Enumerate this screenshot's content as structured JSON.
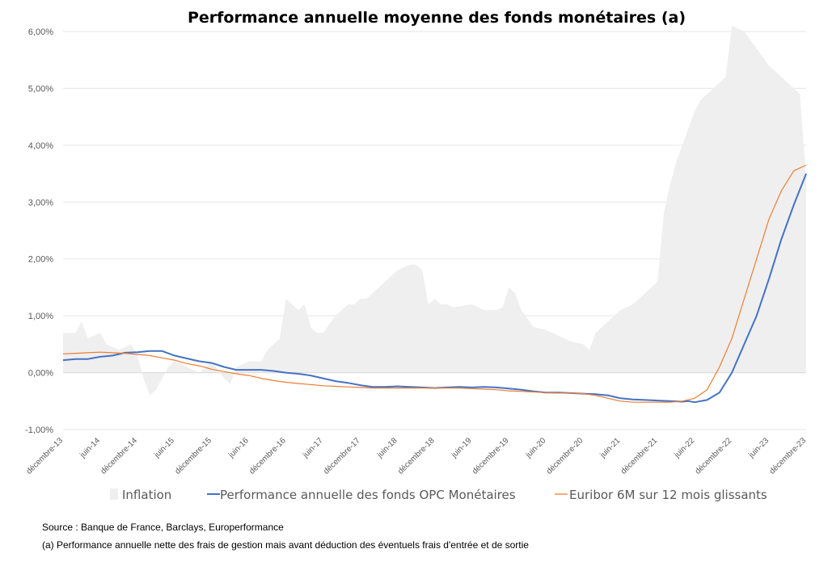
{
  "chart_data": {
    "type": "area",
    "title": "Performance annuelle moyenne des fonds monétaires (a)",
    "xlabel": "",
    "ylabel": "",
    "ylim": [
      -1.0,
      6.0
    ],
    "yticks": [
      "-1,00%",
      "0,00%",
      "1,00%",
      "2,00%",
      "3,00%",
      "4,00%",
      "5,00%",
      "6,00%"
    ],
    "ytick_values": [
      -1,
      0,
      1,
      2,
      3,
      4,
      5,
      6
    ],
    "x_labels": [
      "décembre-13",
      "juin-14",
      "décembre-14",
      "juin-15",
      "décembre-15",
      "juin-16",
      "décembre-16",
      "juin-17",
      "décembre-17",
      "juin-18",
      "décembre-18",
      "juin-19",
      "décembre-19",
      "juin-20",
      "décembre-20",
      "juin-21",
      "décembre-21",
      "juin-22",
      "décembre-22",
      "juin-23",
      "décembre-23"
    ],
    "x_label_months": [
      0,
      6,
      12,
      18,
      24,
      30,
      36,
      42,
      48,
      54,
      60,
      66,
      72,
      78,
      84,
      90,
      96,
      102,
      108,
      114,
      120
    ],
    "grid": "horizontal",
    "legend_position": "bottom",
    "series": [
      {
        "name": "Inflation",
        "style": "area",
        "color": "#efefef",
        "points": [
          [
            0,
            0.7
          ],
          [
            2,
            0.7
          ],
          [
            3,
            0.9
          ],
          [
            4,
            0.6
          ],
          [
            6,
            0.7
          ],
          [
            7,
            0.5
          ],
          [
            9,
            0.4
          ],
          [
            11,
            0.5
          ],
          [
            12,
            0.3
          ],
          [
            13,
            -0.1
          ],
          [
            14,
            -0.4
          ],
          [
            15,
            -0.3
          ],
          [
            16,
            -0.1
          ],
          [
            17,
            0.1
          ],
          [
            18,
            0.2
          ],
          [
            20,
            0.1
          ],
          [
            22,
            0.0
          ],
          [
            24,
            0.2
          ],
          [
            26,
            -0.1
          ],
          [
            27,
            -0.2
          ],
          [
            28,
            0.1
          ],
          [
            30,
            0.2
          ],
          [
            32,
            0.2
          ],
          [
            33,
            0.4
          ],
          [
            35,
            0.6
          ],
          [
            36,
            1.3
          ],
          [
            37,
            1.2
          ],
          [
            38,
            1.1
          ],
          [
            39,
            1.2
          ],
          [
            40,
            0.8
          ],
          [
            41,
            0.7
          ],
          [
            42,
            0.7
          ],
          [
            44,
            1.0
          ],
          [
            46,
            1.2
          ],
          [
            47,
            1.2
          ],
          [
            48,
            1.3
          ],
          [
            49,
            1.3
          ],
          [
            50,
            1.4
          ],
          [
            52,
            1.6
          ],
          [
            54,
            1.8
          ],
          [
            56,
            1.9
          ],
          [
            57,
            1.9
          ],
          [
            58,
            1.8
          ],
          [
            59,
            1.2
          ],
          [
            60,
            1.3
          ],
          [
            61,
            1.2
          ],
          [
            62,
            1.2
          ],
          [
            63,
            1.15
          ],
          [
            66,
            1.2
          ],
          [
            68,
            1.1
          ],
          [
            70,
            1.1
          ],
          [
            71,
            1.15
          ],
          [
            72,
            1.5
          ],
          [
            73,
            1.4
          ],
          [
            74,
            1.1
          ],
          [
            76,
            0.8
          ],
          [
            78,
            0.75
          ],
          [
            80,
            0.65
          ],
          [
            82,
            0.55
          ],
          [
            84,
            0.5
          ],
          [
            85,
            0.4
          ],
          [
            86,
            0.7
          ],
          [
            88,
            0.9
          ],
          [
            90,
            1.1
          ],
          [
            92,
            1.2
          ],
          [
            94,
            1.4
          ],
          [
            96,
            1.6
          ],
          [
            97,
            2.8
          ],
          [
            98,
            3.3
          ],
          [
            99,
            3.7
          ],
          [
            100,
            4.0
          ],
          [
            101,
            4.3
          ],
          [
            102,
            4.6
          ],
          [
            103,
            4.8
          ],
          [
            104,
            4.9
          ],
          [
            106,
            5.1
          ],
          [
            107,
            5.2
          ],
          [
            108,
            6.1
          ],
          [
            110,
            6.0
          ],
          [
            112,
            5.7
          ],
          [
            114,
            5.4
          ],
          [
            116,
            5.2
          ],
          [
            118,
            5.0
          ],
          [
            119,
            4.9
          ],
          [
            120,
            3.4
          ]
        ]
      },
      {
        "name": "Performance annuelle des fonds OPC Monétaires",
        "style": "line",
        "color": "#4472c4",
        "points": [
          [
            0,
            0.22
          ],
          [
            2,
            0.24
          ],
          [
            4,
            0.24
          ],
          [
            6,
            0.28
          ],
          [
            8,
            0.3
          ],
          [
            10,
            0.35
          ],
          [
            12,
            0.36
          ],
          [
            14,
            0.38
          ],
          [
            16,
            0.38
          ],
          [
            18,
            0.3
          ],
          [
            20,
            0.25
          ],
          [
            22,
            0.2
          ],
          [
            24,
            0.17
          ],
          [
            26,
            0.1
          ],
          [
            28,
            0.05
          ],
          [
            30,
            0.05
          ],
          [
            32,
            0.05
          ],
          [
            34,
            0.03
          ],
          [
            36,
            0.0
          ],
          [
            38,
            -0.02
          ],
          [
            40,
            -0.05
          ],
          [
            42,
            -0.1
          ],
          [
            44,
            -0.15
          ],
          [
            46,
            -0.18
          ],
          [
            48,
            -0.22
          ],
          [
            50,
            -0.25
          ],
          [
            52,
            -0.25
          ],
          [
            54,
            -0.24
          ],
          [
            56,
            -0.25
          ],
          [
            58,
            -0.26
          ],
          [
            60,
            -0.27
          ],
          [
            62,
            -0.26
          ],
          [
            64,
            -0.25
          ],
          [
            66,
            -0.26
          ],
          [
            68,
            -0.25
          ],
          [
            70,
            -0.26
          ],
          [
            72,
            -0.28
          ],
          [
            74,
            -0.3
          ],
          [
            76,
            -0.33
          ],
          [
            78,
            -0.35
          ],
          [
            80,
            -0.35
          ],
          [
            82,
            -0.36
          ],
          [
            84,
            -0.37
          ],
          [
            86,
            -0.38
          ],
          [
            88,
            -0.4
          ],
          [
            90,
            -0.45
          ],
          [
            92,
            -0.47
          ],
          [
            94,
            -0.48
          ],
          [
            96,
            -0.49
          ],
          [
            98,
            -0.5
          ],
          [
            100,
            -0.51
          ],
          [
            101,
            -0.5
          ],
          [
            102,
            -0.52
          ],
          [
            104,
            -0.48
          ],
          [
            106,
            -0.35
          ],
          [
            108,
            0.0
          ],
          [
            110,
            0.5
          ],
          [
            112,
            1.0
          ],
          [
            114,
            1.65
          ],
          [
            116,
            2.35
          ],
          [
            118,
            2.95
          ],
          [
            120,
            3.5
          ]
        ]
      },
      {
        "name": "Euribor 6M sur 12 mois glissants",
        "style": "line",
        "color": "#ed7d31",
        "points": [
          [
            0,
            0.33
          ],
          [
            2,
            0.34
          ],
          [
            4,
            0.35
          ],
          [
            6,
            0.36
          ],
          [
            8,
            0.35
          ],
          [
            10,
            0.34
          ],
          [
            12,
            0.32
          ],
          [
            14,
            0.3
          ],
          [
            16,
            0.26
          ],
          [
            18,
            0.22
          ],
          [
            20,
            0.16
          ],
          [
            22,
            0.12
          ],
          [
            24,
            0.06
          ],
          [
            26,
            0.02
          ],
          [
            28,
            -0.02
          ],
          [
            30,
            -0.05
          ],
          [
            32,
            -0.1
          ],
          [
            34,
            -0.14
          ],
          [
            36,
            -0.17
          ],
          [
            38,
            -0.19
          ],
          [
            40,
            -0.21
          ],
          [
            42,
            -0.23
          ],
          [
            44,
            -0.24
          ],
          [
            46,
            -0.25
          ],
          [
            48,
            -0.26
          ],
          [
            50,
            -0.27
          ],
          [
            52,
            -0.27
          ],
          [
            54,
            -0.27
          ],
          [
            56,
            -0.27
          ],
          [
            58,
            -0.27
          ],
          [
            60,
            -0.27
          ],
          [
            62,
            -0.27
          ],
          [
            64,
            -0.27
          ],
          [
            66,
            -0.28
          ],
          [
            68,
            -0.29
          ],
          [
            70,
            -0.3
          ],
          [
            72,
            -0.32
          ],
          [
            74,
            -0.33
          ],
          [
            76,
            -0.34
          ],
          [
            78,
            -0.35
          ],
          [
            80,
            -0.36
          ],
          [
            82,
            -0.36
          ],
          [
            84,
            -0.37
          ],
          [
            86,
            -0.4
          ],
          [
            88,
            -0.45
          ],
          [
            90,
            -0.5
          ],
          [
            92,
            -0.52
          ],
          [
            94,
            -0.52
          ],
          [
            96,
            -0.52
          ],
          [
            98,
            -0.52
          ],
          [
            100,
            -0.5
          ],
          [
            102,
            -0.45
          ],
          [
            104,
            -0.3
          ],
          [
            106,
            0.1
          ],
          [
            108,
            0.6
          ],
          [
            110,
            1.3
          ],
          [
            112,
            2.0
          ],
          [
            114,
            2.7
          ],
          [
            116,
            3.2
          ],
          [
            118,
            3.55
          ],
          [
            120,
            3.65
          ]
        ]
      }
    ]
  },
  "notes": {
    "source": "Source : Banque de France, Barclays, Europerformance",
    "footnote": "(a) Performance annuelle nette des frais de gestion mais avant déduction des éventuels frais d'entrée et de sortie"
  }
}
